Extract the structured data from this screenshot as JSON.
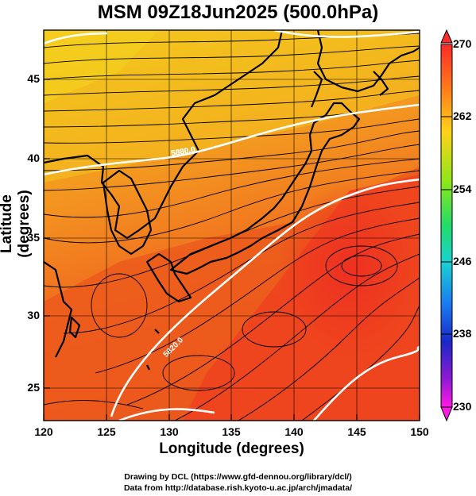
{
  "title": "MSM 09Z18Jun2025 (500.0hPa)",
  "axes": {
    "xlabel": "Longitude (degrees)",
    "ylabel": "Latitude  (degrees)",
    "xticks": [
      "120",
      "125",
      "130",
      "135",
      "140",
      "145",
      "150"
    ],
    "yticks": [
      "25",
      "30",
      "35",
      "40",
      "45"
    ],
    "xlim": [
      120,
      150
    ],
    "ylim": [
      22.4,
      47.6
    ]
  },
  "colorbar": {
    "ticks": [
      "270",
      "262",
      "254",
      "246",
      "238",
      "230"
    ],
    "range": [
      230,
      270
    ],
    "colors": [
      "#ff2a2a",
      "#ff8c1a",
      "#ffd21a",
      "#c8e61a",
      "#3ce63c",
      "#1ad2c8",
      "#1a8cf0",
      "#1a28c8",
      "#8c1ac8",
      "#ff1ae6"
    ]
  },
  "contours": [
    {
      "label": "5880.0",
      "value": 5880
    },
    {
      "label": "5820.0",
      "value": 5820
    }
  ],
  "credits": {
    "line1": "Drawing by DCL (https://www.gfd-dennou.org/library/dcl/)",
    "line2": "Data from http://database.rish.kyoto-u.ac.jp/arch/jmadata/"
  },
  "colors": {
    "warm_south": "#ec4a1c",
    "mid": "#f2851e",
    "north": "#f2b81e",
    "core": "#ee3220",
    "coast": "#000000",
    "contour": "#ffffff"
  }
}
